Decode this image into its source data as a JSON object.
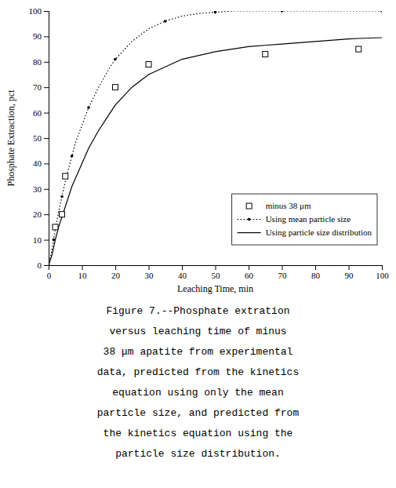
{
  "chart_data": {
    "type": "line",
    "xlabel": "Leaching Time, min",
    "ylabel": "Phosphate Extraction, pct",
    "xlim": [
      0,
      100
    ],
    "ylim": [
      0,
      100
    ],
    "xticks": [
      0,
      10,
      20,
      30,
      40,
      50,
      60,
      70,
      80,
      90,
      100
    ],
    "yticks": [
      0,
      10,
      20,
      30,
      40,
      50,
      60,
      70,
      80,
      90,
      100
    ],
    "grid": false,
    "legend": "lower right",
    "series": [
      {
        "name": "minus 38 μm",
        "type": "scatter",
        "marker": "square",
        "color": "#000000",
        "x": [
          2,
          4,
          5,
          20,
          30,
          65,
          93
        ],
        "values": [
          15,
          20,
          35,
          70,
          79,
          83,
          85
        ]
      },
      {
        "name": "Using mean particle size",
        "type": "line",
        "line_style": "dotted",
        "marker": "dot",
        "color": "#000000",
        "x": [
          0,
          0.5,
          1,
          1.5,
          2,
          3,
          4,
          5,
          6,
          7,
          8,
          10,
          12,
          15,
          18,
          20,
          25,
          30,
          35,
          40,
          45,
          50,
          55,
          60,
          70,
          80,
          90,
          100
        ],
        "values": [
          0,
          3,
          6,
          10,
          14,
          21,
          27,
          33,
          38,
          43,
          48,
          55,
          62,
          70,
          77,
          81,
          88,
          93,
          96,
          98,
          99,
          99.5,
          100,
          100,
          100,
          100,
          100,
          100
        ]
      },
      {
        "name": "Using particle size distribution",
        "type": "line",
        "line_style": "solid",
        "color": "#000000",
        "x": [
          0,
          0.5,
          1,
          1.5,
          2,
          3,
          4,
          5,
          6,
          7,
          8,
          10,
          12,
          15,
          18,
          20,
          25,
          30,
          35,
          40,
          50,
          60,
          65,
          70,
          80,
          90,
          93,
          100
        ],
        "values": [
          0,
          2,
          4,
          7,
          10,
          15,
          19,
          23,
          27,
          31,
          34,
          40,
          46,
          53,
          59,
          63,
          70,
          75,
          78,
          81,
          84,
          86,
          86.5,
          87,
          88,
          89,
          89.2,
          89.5
        ]
      }
    ],
    "caption": [
      "Figure 7.--Phosphate extration",
      "versus leaching time of minus",
      "38 μm apatite from experimental",
      "data, predicted from the kinetics",
      "equation using only the mean",
      "particle size, and predicted from",
      "the kinetics equation using the",
      "particle size distribution."
    ]
  }
}
